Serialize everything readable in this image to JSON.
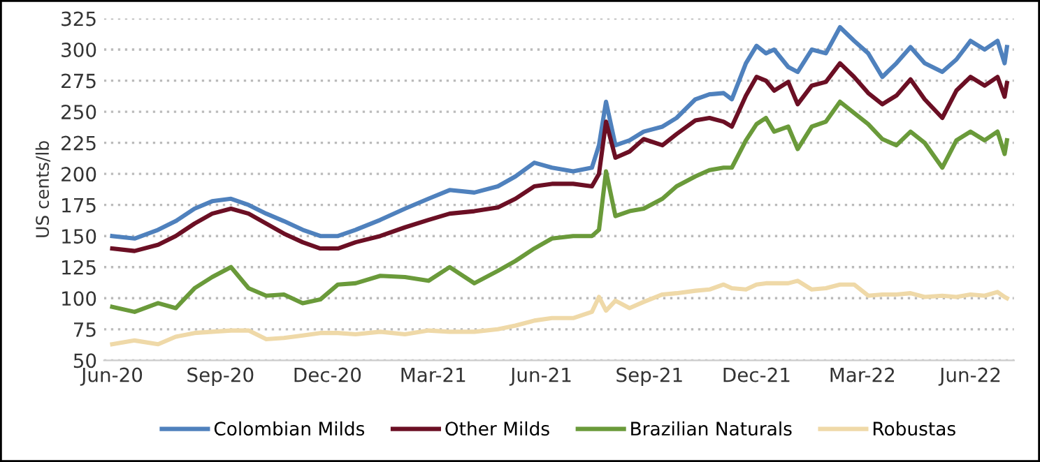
{
  "chart_data": {
    "type": "line",
    "ylabel": "US cents/lb",
    "x": [
      "2020-06-01",
      "2020-06-20",
      "2020-07-10",
      "2020-07-25",
      "2020-08-10",
      "2020-08-25",
      "2020-09-10",
      "2020-09-25",
      "2020-10-10",
      "2020-10-25",
      "2020-11-10",
      "2020-11-25",
      "2020-12-10",
      "2020-12-25",
      "2021-01-15",
      "2021-02-05",
      "2021-02-25",
      "2021-03-15",
      "2021-04-05",
      "2021-04-25",
      "2021-05-10",
      "2021-05-26",
      "2021-06-10",
      "2021-06-28",
      "2021-07-14",
      "2021-07-20",
      "2021-07-26",
      "2021-08-03",
      "2021-08-15",
      "2021-08-27",
      "2021-09-12",
      "2021-09-24",
      "2021-10-10",
      "2021-10-22",
      "2021-11-03",
      "2021-11-10",
      "2021-11-22",
      "2021-12-01",
      "2021-12-09",
      "2021-12-16",
      "2021-12-28",
      "2022-01-05",
      "2022-01-17",
      "2022-01-29",
      "2022-02-10",
      "2022-02-22",
      "2022-03-06",
      "2022-03-18",
      "2022-03-30",
      "2022-04-11",
      "2022-04-23",
      "2022-05-08",
      "2022-05-20",
      "2022-06-01",
      "2022-06-13",
      "2022-06-24",
      "2022-06-30",
      "2022-07-02"
    ],
    "series": [
      {
        "name": "Colombian Milds",
        "color": "#4f81bd",
        "values": [
          150,
          148,
          155,
          162,
          172,
          178,
          180,
          175,
          168,
          162,
          155,
          150,
          150,
          155,
          163,
          172,
          180,
          187,
          185,
          190,
          198,
          209,
          205,
          202,
          205,
          223,
          258,
          223,
          227,
          234,
          238,
          245,
          260,
          264,
          265,
          260,
          289,
          303,
          297,
          300,
          286,
          282,
          300,
          297,
          318,
          307,
          297,
          278,
          289,
          302,
          289,
          282,
          292,
          307,
          300,
          307,
          289,
          302
        ]
      },
      {
        "name": "Other Milds",
        "color": "#6b0f24",
        "values": [
          140,
          138,
          143,
          150,
          160,
          168,
          172,
          168,
          160,
          152,
          145,
          140,
          140,
          145,
          150,
          157,
          163,
          168,
          170,
          173,
          180,
          190,
          192,
          192,
          190,
          200,
          242,
          213,
          218,
          228,
          223,
          232,
          243,
          245,
          242,
          238,
          263,
          278,
          275,
          267,
          274,
          256,
          271,
          274,
          289,
          278,
          265,
          256,
          263,
          276,
          260,
          245,
          267,
          278,
          271,
          278,
          262,
          273
        ]
      },
      {
        "name": "Brazilian Naturals",
        "color": "#6a9a3a",
        "values": [
          93,
          89,
          96,
          92,
          108,
          117,
          125,
          108,
          102,
          103,
          96,
          99,
          111,
          112,
          118,
          117,
          114,
          125,
          112,
          122,
          130,
          140,
          148,
          150,
          150,
          155,
          202,
          166,
          170,
          172,
          180,
          190,
          198,
          203,
          205,
          205,
          227,
          240,
          245,
          234,
          238,
          220,
          238,
          242,
          258,
          249,
          240,
          228,
          223,
          234,
          225,
          205,
          227,
          234,
          227,
          234,
          216,
          227
        ]
      },
      {
        "name": "Robustas",
        "color": "#efd9a8",
        "values": [
          63,
          66,
          63,
          69,
          72,
          73,
          74,
          74,
          67,
          68,
          70,
          72,
          72,
          71,
          73,
          71,
          74,
          73,
          73,
          75,
          78,
          82,
          84,
          84,
          89,
          101,
          90,
          98,
          92,
          97,
          103,
          104,
          106,
          107,
          111,
          108,
          107,
          111,
          112,
          112,
          112,
          114,
          107,
          108,
          111,
          111,
          102,
          103,
          103,
          104,
          101,
          102,
          101,
          103,
          102,
          105,
          101,
          100
        ]
      }
    ],
    "xlim": [
      "2020-05-25",
      "2022-07-08"
    ],
    "xticks": [
      {
        "value": "2020-06-01",
        "label": "Jun-20"
      },
      {
        "value": "2020-09-01",
        "label": "Sep-20"
      },
      {
        "value": "2020-12-01",
        "label": "Dec-20"
      },
      {
        "value": "2021-03-01",
        "label": "Mar-21"
      },
      {
        "value": "2021-06-01",
        "label": "Jun-21"
      },
      {
        "value": "2021-09-01",
        "label": "Sep-21"
      },
      {
        "value": "2021-12-01",
        "label": "Dec-21"
      },
      {
        "value": "2022-03-01",
        "label": "Mar-22"
      },
      {
        "value": "2022-06-01",
        "label": "Jun-22"
      }
    ],
    "ylim": [
      50,
      325
    ],
    "yticks": [
      50,
      75,
      100,
      125,
      150,
      175,
      200,
      225,
      250,
      275,
      300,
      325
    ],
    "grid": "y",
    "legend": "bottom",
    "marker": "none",
    "line_style": "solid"
  }
}
